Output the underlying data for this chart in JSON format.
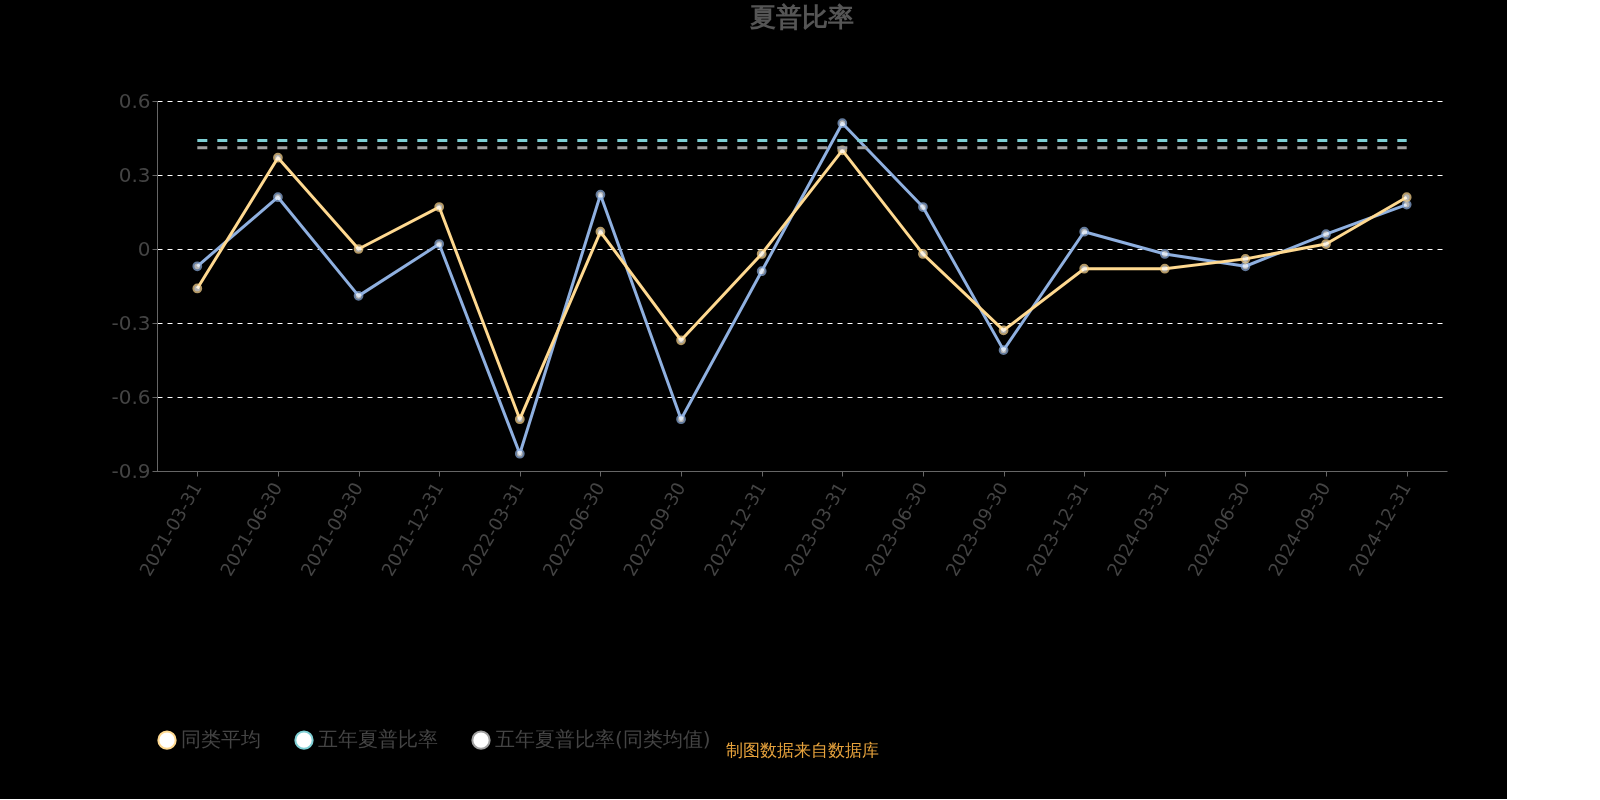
{
  "chart_data": {
    "type": "line",
    "title": "夏普比率",
    "categories": [
      "2021-03-31",
      "2021-06-30",
      "2021-09-30",
      "2021-12-31",
      "2022-03-31",
      "2022-06-30",
      "2022-09-30",
      "2022-12-31",
      "2023-03-31",
      "2023-06-30",
      "2023-09-30",
      "2023-12-31",
      "2024-03-31",
      "2024-06-30",
      "2024-09-30",
      "2024-12-31"
    ],
    "series": [
      {
        "color": "#8fb0e0",
        "marker": "circle",
        "line_style": "solid",
        "values": [
          -0.07,
          0.21,
          -0.19,
          0.02,
          -0.83,
          0.22,
          -0.69,
          -0.09,
          0.51,
          0.17,
          -0.41,
          0.07,
          -0.02,
          -0.07,
          0.06,
          0.18
        ]
      },
      {
        "name": "同类平均",
        "color": "#ffd990",
        "marker": "circle",
        "line_style": "solid",
        "values": [
          -0.16,
          0.37,
          0.0,
          0.17,
          -0.69,
          0.07,
          -0.37,
          -0.02,
          0.4,
          -0.02,
          -0.33,
          -0.08,
          -0.08,
          -0.04,
          0.02,
          0.21
        ]
      },
      {
        "name": "五年夏普比率",
        "color": "#7ecfd4",
        "marker": "none",
        "line_style": "dashed",
        "values": [
          0.44,
          0.44,
          0.44,
          0.44,
          0.44,
          0.44,
          0.44,
          0.44,
          0.44,
          0.44,
          0.44,
          0.44,
          0.44,
          0.44,
          0.44,
          0.44
        ]
      },
      {
        "name": "五年夏普比率(同类均值)",
        "color": "#a0a0a0",
        "marker": "none",
        "line_style": "dashed",
        "values": [
          0.41,
          0.41,
          0.41,
          0.41,
          0.41,
          0.41,
          0.41,
          0.41,
          0.41,
          0.41,
          0.41,
          0.41,
          0.41,
          0.41,
          0.41,
          0.41
        ]
      }
    ],
    "ylim": [
      -0.9,
      0.6
    ],
    "yticks": [
      -0.9,
      -0.6,
      -0.3,
      0,
      0.3,
      0.6
    ],
    "grid": "y",
    "legend": "bottom",
    "annotations": [
      "制图数据来自数据库"
    ]
  }
}
